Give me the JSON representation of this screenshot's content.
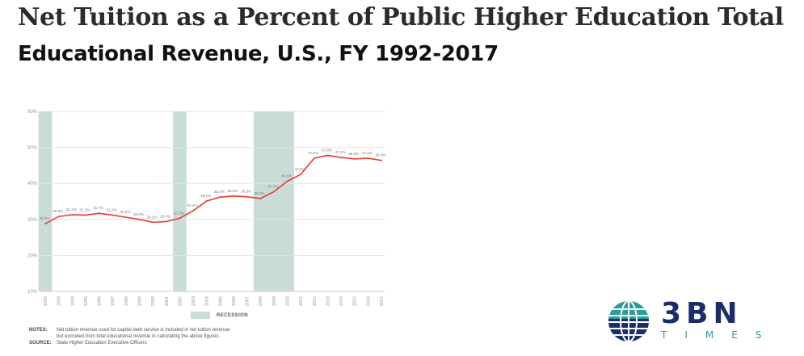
{
  "header": {
    "title_line1": "Net Tuition as a Percent of Public Higher Education Total",
    "title_line2": "Educational Revenue, U.S., FY 1992-2017"
  },
  "legend": {
    "recession_label": "RECESSION"
  },
  "notes": {
    "notes_key": "NOTES:",
    "notes_text_1": "Net tuition revenue used for capital debt service is included in net tuition revenue,",
    "notes_text_2": "but excluded from total educational revenue in calculating the above figures.",
    "source_key": "SOURCE:",
    "source_text": "State Higher Education Executive Officers"
  },
  "logo": {
    "text": "3BN",
    "subtext": "TIMES"
  },
  "colors": {
    "line": "#e8392f",
    "recession": "#c9dcd8",
    "grid": "#e6e6e6",
    "axis_text": "#999999",
    "logo_navy": "#1c2d6a",
    "logo_teal": "#2a9d9a"
  },
  "chart_data": {
    "type": "line",
    "title": "Net Tuition as a Percent of Public Higher Education Total Educational Revenue, U.S., FY 1992-2017",
    "xlabel": "",
    "ylabel": "",
    "ylim": [
      10,
      60
    ],
    "yticks": [
      "10%",
      "20%",
      "30%",
      "40%",
      "50%",
      "60%"
    ],
    "ytick_values": [
      10,
      20,
      30,
      40,
      50,
      60
    ],
    "categories": [
      "1992",
      "1993",
      "1994",
      "1995",
      "1996",
      "1997",
      "1998",
      "1999",
      "2000",
      "2001",
      "2002",
      "2003",
      "2004",
      "2005",
      "2006",
      "2007",
      "2008",
      "2009",
      "2010",
      "2011",
      "2012",
      "2013",
      "2014",
      "2015",
      "2016",
      "2017"
    ],
    "values": [
      28.8,
      30.8,
      31.3,
      31.2,
      31.7,
      31.2,
      30.6,
      30.0,
      29.2,
      29.4,
      30.3,
      32.4,
      35.1,
      36.2,
      36.5,
      36.3,
      35.8,
      37.7,
      40.6,
      42.5,
      47.0,
      47.8,
      47.2,
      46.8,
      47.0,
      46.4
    ],
    "data_labels": [
      "28.8%",
      "30.8%",
      "31.3%",
      "31.2%",
      "31.7%",
      "31.2%",
      "30.6%",
      "30.0%",
      "29.2%",
      "29.4%",
      "30.3%",
      "32.4%",
      "35.1%",
      "36.2%",
      "36.5%",
      "36.3%",
      "35.8%",
      "37.7%",
      "40.6%",
      "42.5%",
      "47.0%",
      "47.8%",
      "47.2%",
      "46.8%",
      "47.0%",
      "46.4%"
    ],
    "recessions": [
      [
        "1992",
        "1992"
      ],
      [
        "2002",
        "2002"
      ],
      [
        "2008",
        "2010"
      ]
    ],
    "grid": true,
    "legend_position": "bottom-center"
  }
}
